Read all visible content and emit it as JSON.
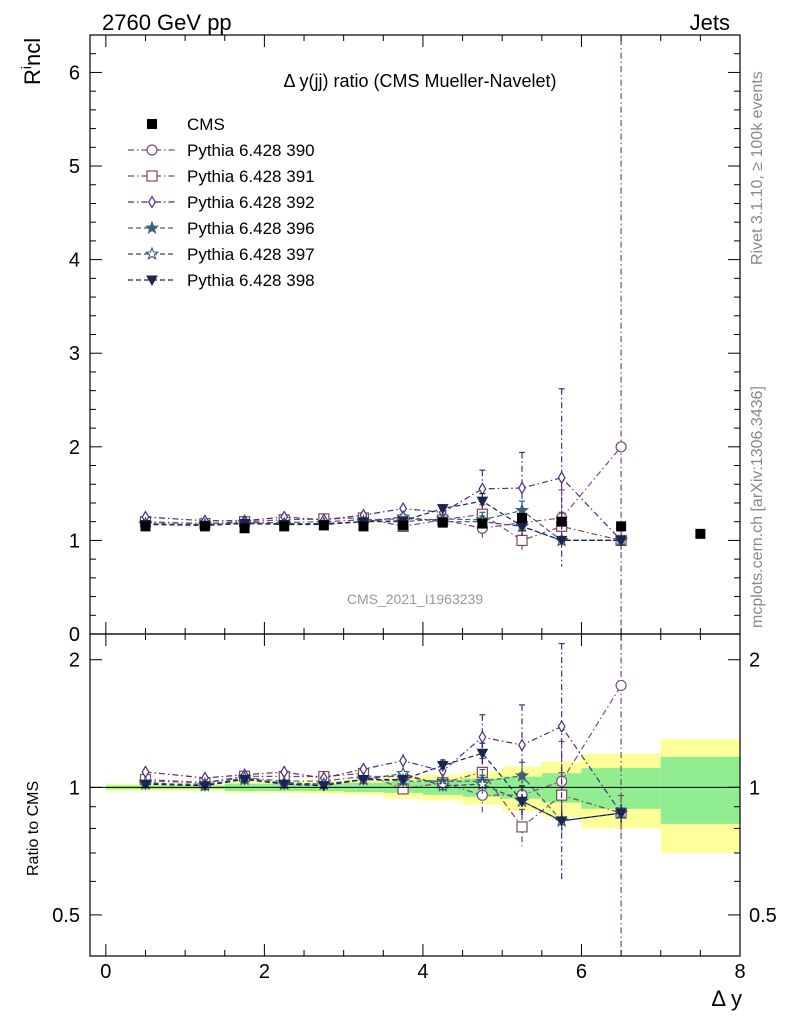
{
  "header": {
    "left": "2760 GeV pp",
    "right": "Jets"
  },
  "side_labels": {
    "rivet": "Rivet 3.1.10, ≥ 100k events",
    "mcplots": "mcplots.cern.ch [arXiv:1306.3436]"
  },
  "chart_data": {
    "type": "scatter",
    "title": "Δ y(jj) ratio (CMS Mueller-Navelet)",
    "watermark": "CMS_2021_I1963239",
    "xlabel": "Δ y",
    "ylabel_main": "R^incl",
    "ylabel_ratio": "Ratio to CMS",
    "xlim": [
      -0.2,
      8.0
    ],
    "ylim_main": [
      0,
      6.4
    ],
    "ylim_ratio": [
      0.4,
      2.3
    ],
    "ratio_scale": "log",
    "x_ticks": [
      "0",
      "2",
      "4",
      "6",
      "8"
    ],
    "y_ticks_main": [
      "0",
      "1",
      "2",
      "3",
      "4",
      "5",
      "6"
    ],
    "y_ticks_ratio": [
      "0.5",
      "1",
      "2"
    ],
    "legend_position": "top-left",
    "data": {
      "name": "CMS",
      "x": [
        0.5,
        1.25,
        1.75,
        2.25,
        2.75,
        3.25,
        3.75,
        4.25,
        4.75,
        5.25,
        5.75,
        6.5,
        7.5
      ],
      "y": [
        1.15,
        1.15,
        1.13,
        1.15,
        1.16,
        1.15,
        1.16,
        1.19,
        1.18,
        1.24,
        1.2,
        1.15,
        1.07
      ]
    },
    "band": {
      "edges": [
        0.0,
        1.0,
        1.5,
        2.0,
        2.5,
        3.0,
        3.5,
        4.0,
        4.5,
        5.0,
        5.5,
        6.0,
        7.0,
        8.0
      ],
      "inner": [
        0.01,
        0.01,
        0.02,
        0.02,
        0.02,
        0.025,
        0.03,
        0.04,
        0.05,
        0.06,
        0.08,
        0.11,
        0.18
      ],
      "outer": [
        0.02,
        0.02,
        0.03,
        0.03,
        0.035,
        0.04,
        0.06,
        0.07,
        0.09,
        0.12,
        0.15,
        0.2,
        0.3
      ],
      "inner_color": "#90ee90",
      "outer_color": "#ffff99"
    },
    "series": [
      {
        "name": "Pythia 6.428 390",
        "color": "#7b4a7e",
        "marker": "circle-open",
        "dash": "dashdot",
        "x": [
          0.5,
          1.25,
          1.75,
          2.25,
          2.75,
          3.25,
          3.75,
          4.25,
          4.75,
          5.25,
          5.75,
          6.5
        ],
        "y": [
          1.19,
          1.18,
          1.19,
          1.19,
          1.2,
          1.22,
          1.23,
          1.22,
          1.13,
          1.19,
          1.24,
          2.0
        ],
        "err": [
          0.02,
          0.02,
          0.02,
          0.02,
          0.02,
          0.03,
          0.04,
          0.05,
          0.1,
          0.15,
          0.3,
          4.5
        ]
      },
      {
        "name": "Pythia 6.428 391",
        "color": "#7b4a5a",
        "marker": "square-open",
        "dash": "dashdot",
        "x": [
          0.5,
          1.25,
          1.75,
          2.25,
          2.75,
          3.25,
          3.75,
          4.25,
          4.75,
          5.25,
          5.75,
          6.5
        ],
        "y": [
          1.2,
          1.18,
          1.2,
          1.22,
          1.23,
          1.24,
          1.15,
          1.22,
          1.28,
          1.0,
          1.15,
          1.0
        ],
        "err": [
          0.02,
          0.02,
          0.02,
          0.02,
          0.02,
          0.03,
          0.04,
          0.05,
          0.1,
          0.1,
          0.15,
          0.1
        ]
      },
      {
        "name": "Pythia 6.428 392",
        "color": "#4b2a7e",
        "marker": "diamond-open",
        "dash": "dashdot",
        "x": [
          0.5,
          1.25,
          1.75,
          2.25,
          2.75,
          3.25,
          3.75,
          4.25,
          4.75,
          5.25,
          5.75,
          6.5
        ],
        "y": [
          1.25,
          1.21,
          1.21,
          1.25,
          1.22,
          1.27,
          1.34,
          1.3,
          1.55,
          1.56,
          1.67,
          1.0
        ],
        "err": [
          0.02,
          0.02,
          0.02,
          0.02,
          0.03,
          0.04,
          0.05,
          0.08,
          0.2,
          0.38,
          0.95,
          0.05
        ]
      },
      {
        "name": "Pythia 6.428 396",
        "color": "#3d6278",
        "marker": "star-filled",
        "dash": "dashed",
        "x": [
          0.5,
          1.25,
          1.75,
          2.25,
          2.75,
          3.25,
          3.75,
          4.25,
          4.75,
          5.25,
          5.75,
          6.5
        ],
        "y": [
          1.17,
          1.17,
          1.18,
          1.18,
          1.18,
          1.2,
          1.2,
          1.23,
          1.22,
          1.32,
          1.0,
          1.0
        ],
        "err": [
          0.02,
          0.02,
          0.02,
          0.02,
          0.02,
          0.03,
          0.04,
          0.05,
          0.08,
          0.1,
          0.05,
          0.05
        ]
      },
      {
        "name": "Pythia 6.428 397",
        "color": "#2d4f6e",
        "marker": "star-open",
        "dash": "dashed",
        "x": [
          0.5,
          1.25,
          1.75,
          2.25,
          2.75,
          3.25,
          3.75,
          4.25,
          4.75,
          5.25,
          5.75,
          6.5
        ],
        "y": [
          1.18,
          1.16,
          1.19,
          1.17,
          1.18,
          1.2,
          1.25,
          1.2,
          1.2,
          1.15,
          1.0,
          1.0
        ],
        "err": [
          0.02,
          0.02,
          0.02,
          0.02,
          0.02,
          0.03,
          0.04,
          0.05,
          0.06,
          0.1,
          0.05,
          0.05
        ]
      },
      {
        "name": "Pythia 6.428 398",
        "color": "#1c2552",
        "marker": "triangle-down-filled",
        "dash": "dashed",
        "x": [
          0.5,
          1.25,
          1.75,
          2.25,
          2.75,
          3.25,
          3.75,
          4.25,
          4.75,
          5.25,
          5.75,
          6.5
        ],
        "y": [
          1.17,
          1.16,
          1.18,
          1.17,
          1.17,
          1.2,
          1.21,
          1.34,
          1.42,
          1.15,
          1.0,
          1.0
        ],
        "err": [
          0.02,
          0.02,
          0.02,
          0.02,
          0.02,
          0.03,
          0.04,
          0.05,
          0.08,
          0.1,
          0.05,
          0.05
        ]
      }
    ]
  }
}
